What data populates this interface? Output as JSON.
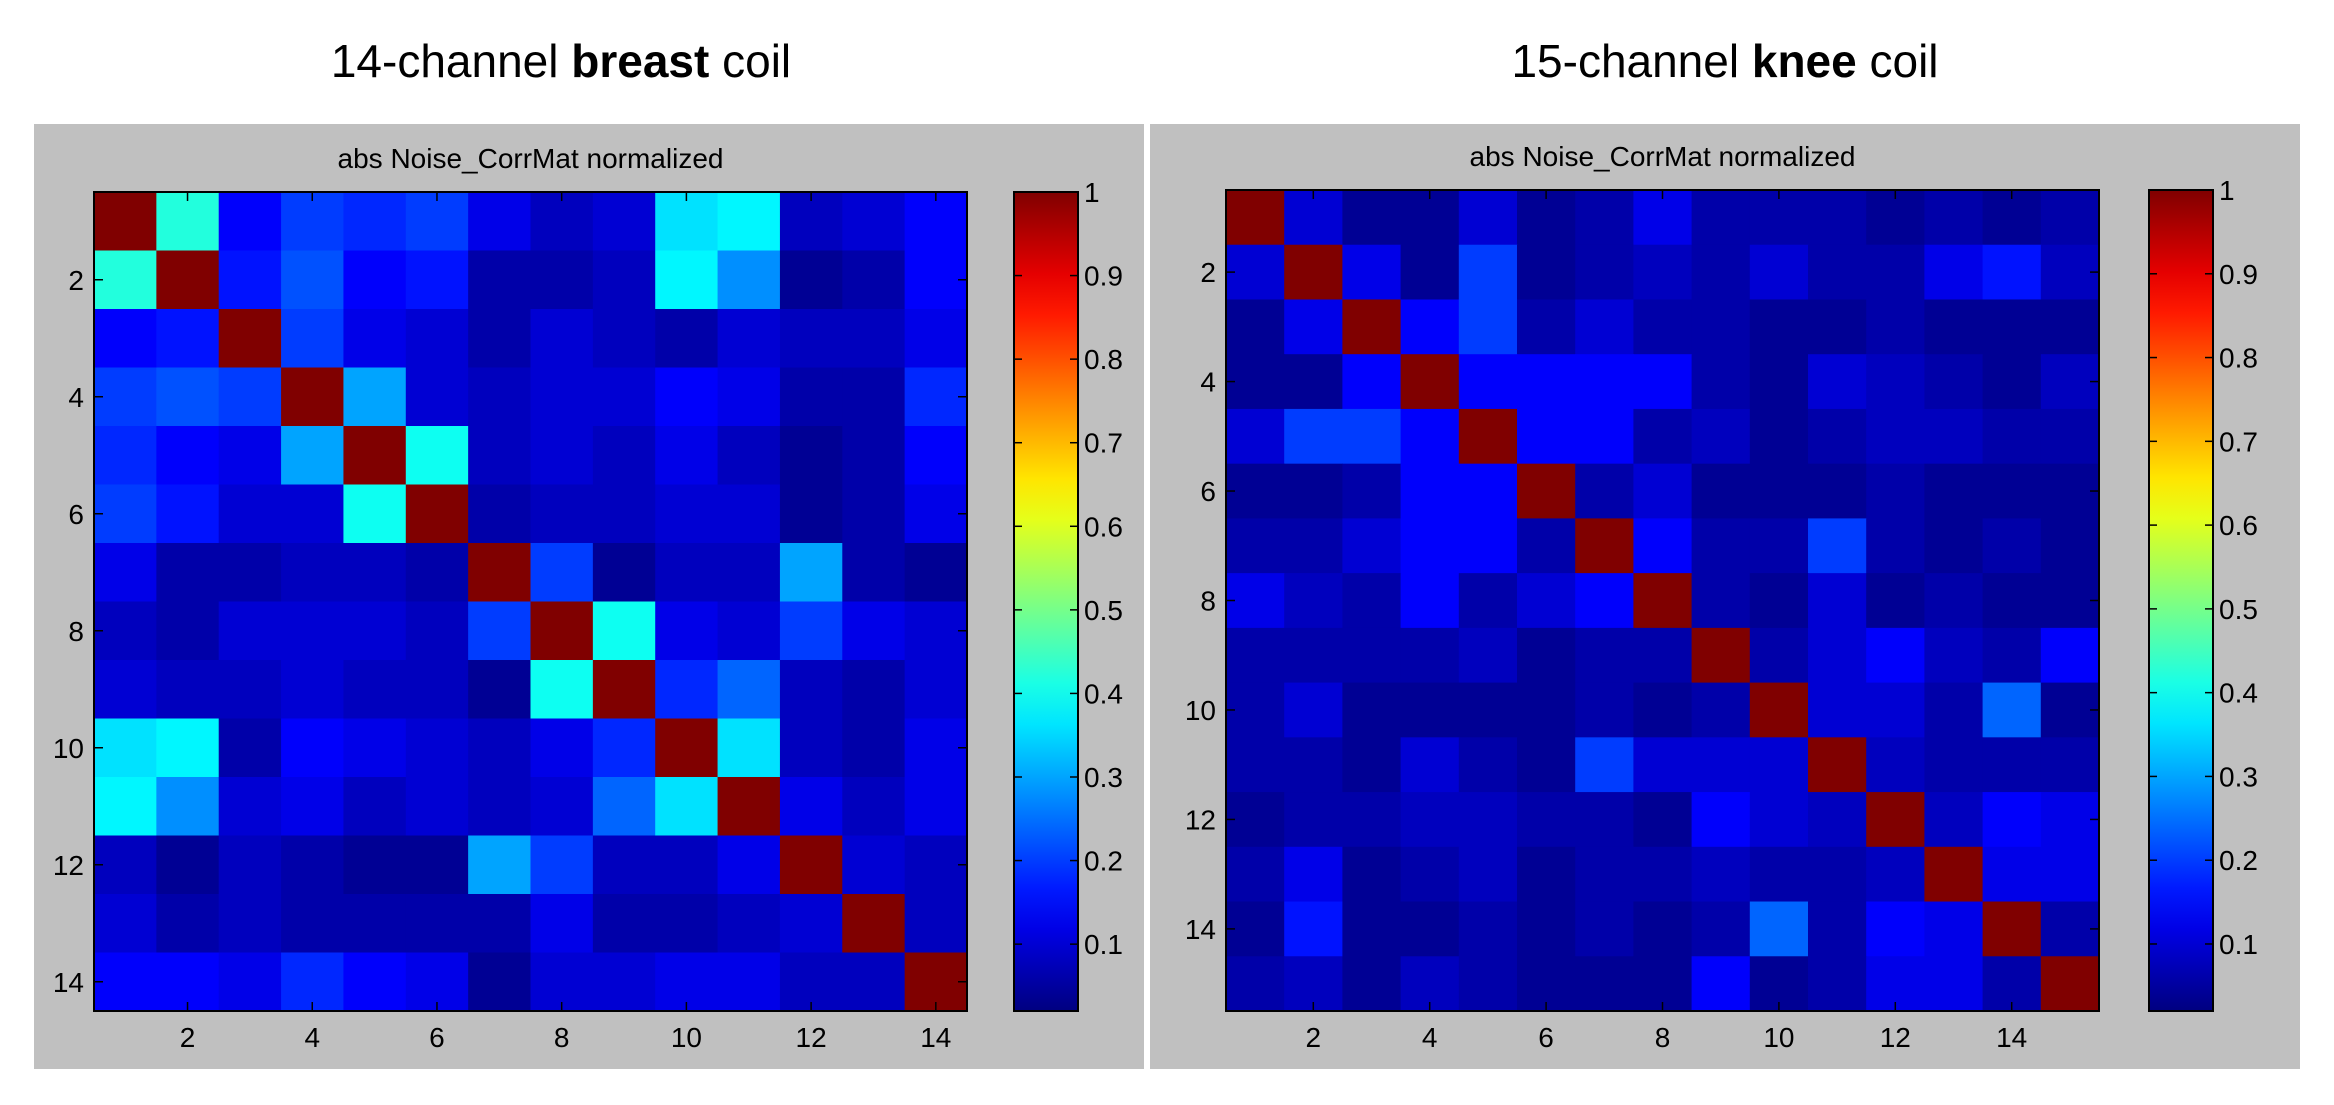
{
  "chart_data": [
    {
      "type": "heatmap",
      "figure_title": {
        "prefix": "14-channel ",
        "bold": "breast",
        "suffix": " coil"
      },
      "title": "abs Noise_CorrMat normalized",
      "size": 14,
      "x_ticks": [
        2,
        4,
        6,
        8,
        10,
        12,
        14
      ],
      "y_ticks": [
        2,
        4,
        6,
        8,
        10,
        12,
        14
      ],
      "colorbar_ticks": [
        "0.1",
        "0.2",
        "0.3",
        "0.4",
        "0.5",
        "0.6",
        "0.7",
        "0.8",
        "0.9",
        "1"
      ],
      "colormap": "jet",
      "clim": [
        0.02,
        1
      ],
      "matrix": [
        [
          1.0,
          0.42,
          0.14,
          0.2,
          0.18,
          0.2,
          0.12,
          0.08,
          0.1,
          0.36,
          0.38,
          0.08,
          0.1,
          0.14
        ],
        [
          0.42,
          1.0,
          0.16,
          0.22,
          0.14,
          0.16,
          0.06,
          0.06,
          0.08,
          0.38,
          0.28,
          0.04,
          0.06,
          0.14
        ],
        [
          0.14,
          0.16,
          1.0,
          0.2,
          0.12,
          0.1,
          0.06,
          0.1,
          0.08,
          0.06,
          0.1,
          0.08,
          0.08,
          0.12
        ],
        [
          0.2,
          0.22,
          0.2,
          1.0,
          0.3,
          0.1,
          0.08,
          0.1,
          0.1,
          0.14,
          0.12,
          0.06,
          0.06,
          0.18
        ],
        [
          0.18,
          0.14,
          0.12,
          0.3,
          1.0,
          0.4,
          0.08,
          0.1,
          0.08,
          0.12,
          0.08,
          0.04,
          0.06,
          0.14
        ],
        [
          0.2,
          0.16,
          0.1,
          0.1,
          0.4,
          1.0,
          0.06,
          0.08,
          0.08,
          0.1,
          0.1,
          0.04,
          0.06,
          0.12
        ],
        [
          0.12,
          0.06,
          0.06,
          0.08,
          0.08,
          0.06,
          1.0,
          0.2,
          0.04,
          0.08,
          0.08,
          0.3,
          0.06,
          0.04
        ],
        [
          0.08,
          0.06,
          0.1,
          0.1,
          0.1,
          0.08,
          0.2,
          1.0,
          0.4,
          0.12,
          0.1,
          0.2,
          0.12,
          0.1
        ],
        [
          0.1,
          0.08,
          0.08,
          0.1,
          0.08,
          0.08,
          0.04,
          0.4,
          1.0,
          0.18,
          0.24,
          0.08,
          0.06,
          0.1
        ],
        [
          0.36,
          0.38,
          0.06,
          0.14,
          0.12,
          0.1,
          0.08,
          0.12,
          0.18,
          1.0,
          0.36,
          0.08,
          0.06,
          0.12
        ],
        [
          0.38,
          0.28,
          0.1,
          0.12,
          0.08,
          0.1,
          0.08,
          0.1,
          0.24,
          0.36,
          1.0,
          0.12,
          0.08,
          0.12
        ],
        [
          0.08,
          0.04,
          0.08,
          0.06,
          0.04,
          0.04,
          0.3,
          0.2,
          0.08,
          0.08,
          0.12,
          1.0,
          0.1,
          0.08
        ],
        [
          0.1,
          0.06,
          0.08,
          0.06,
          0.06,
          0.06,
          0.06,
          0.12,
          0.06,
          0.06,
          0.08,
          0.1,
          1.0,
          0.08
        ],
        [
          0.14,
          0.14,
          0.12,
          0.18,
          0.14,
          0.12,
          0.04,
          0.1,
          0.1,
          0.12,
          0.12,
          0.08,
          0.08,
          1.0
        ]
      ]
    },
    {
      "type": "heatmap",
      "figure_title": {
        "prefix": "15-channel ",
        "bold": "knee",
        "suffix": " coil"
      },
      "title": "abs Noise_CorrMat normalized",
      "size": 15,
      "x_ticks": [
        2,
        4,
        6,
        8,
        10,
        12,
        14
      ],
      "y_ticks": [
        2,
        4,
        6,
        8,
        10,
        12,
        14
      ],
      "colorbar_ticks": [
        "0.1",
        "0.2",
        "0.3",
        "0.4",
        "0.5",
        "0.6",
        "0.7",
        "0.8",
        "0.9",
        "1"
      ],
      "colormap": "jet",
      "clim": [
        0.02,
        1
      ],
      "matrix": [
        [
          1.0,
          0.1,
          0.04,
          0.04,
          0.1,
          0.04,
          0.06,
          0.12,
          0.06,
          0.06,
          0.06,
          0.04,
          0.06,
          0.04,
          0.06
        ],
        [
          0.1,
          1.0,
          0.12,
          0.04,
          0.2,
          0.04,
          0.06,
          0.08,
          0.06,
          0.1,
          0.06,
          0.06,
          0.12,
          0.16,
          0.08
        ],
        [
          0.04,
          0.12,
          1.0,
          0.14,
          0.2,
          0.06,
          0.1,
          0.06,
          0.06,
          0.04,
          0.04,
          0.06,
          0.04,
          0.04,
          0.04
        ],
        [
          0.04,
          0.04,
          0.14,
          1.0,
          0.14,
          0.14,
          0.14,
          0.14,
          0.06,
          0.04,
          0.1,
          0.08,
          0.06,
          0.04,
          0.08
        ],
        [
          0.1,
          0.2,
          0.2,
          0.14,
          1.0,
          0.14,
          0.14,
          0.06,
          0.08,
          0.04,
          0.06,
          0.08,
          0.08,
          0.06,
          0.06
        ],
        [
          0.04,
          0.04,
          0.06,
          0.14,
          0.14,
          1.0,
          0.06,
          0.1,
          0.04,
          0.04,
          0.04,
          0.06,
          0.04,
          0.04,
          0.04
        ],
        [
          0.06,
          0.06,
          0.1,
          0.14,
          0.14,
          0.06,
          1.0,
          0.14,
          0.06,
          0.06,
          0.2,
          0.06,
          0.04,
          0.06,
          0.04
        ],
        [
          0.12,
          0.08,
          0.06,
          0.14,
          0.06,
          0.1,
          0.14,
          1.0,
          0.06,
          0.04,
          0.1,
          0.04,
          0.06,
          0.04,
          0.04
        ],
        [
          0.06,
          0.06,
          0.06,
          0.06,
          0.08,
          0.04,
          0.06,
          0.06,
          1.0,
          0.06,
          0.1,
          0.14,
          0.08,
          0.06,
          0.14
        ],
        [
          0.06,
          0.1,
          0.04,
          0.04,
          0.04,
          0.04,
          0.06,
          0.04,
          0.06,
          1.0,
          0.1,
          0.1,
          0.06,
          0.24,
          0.04
        ],
        [
          0.06,
          0.06,
          0.04,
          0.1,
          0.06,
          0.04,
          0.2,
          0.1,
          0.1,
          0.1,
          1.0,
          0.08,
          0.06,
          0.06,
          0.06
        ],
        [
          0.04,
          0.06,
          0.06,
          0.08,
          0.08,
          0.06,
          0.06,
          0.04,
          0.14,
          0.1,
          0.08,
          1.0,
          0.08,
          0.14,
          0.12
        ],
        [
          0.06,
          0.12,
          0.04,
          0.06,
          0.08,
          0.04,
          0.06,
          0.06,
          0.08,
          0.06,
          0.06,
          0.08,
          1.0,
          0.12,
          0.12
        ],
        [
          0.04,
          0.16,
          0.04,
          0.04,
          0.06,
          0.04,
          0.06,
          0.04,
          0.06,
          0.24,
          0.06,
          0.14,
          0.12,
          1.0,
          0.06
        ],
        [
          0.06,
          0.08,
          0.04,
          0.08,
          0.06,
          0.04,
          0.04,
          0.04,
          0.14,
          0.04,
          0.06,
          0.12,
          0.12,
          0.06,
          1.0
        ]
      ]
    }
  ]
}
